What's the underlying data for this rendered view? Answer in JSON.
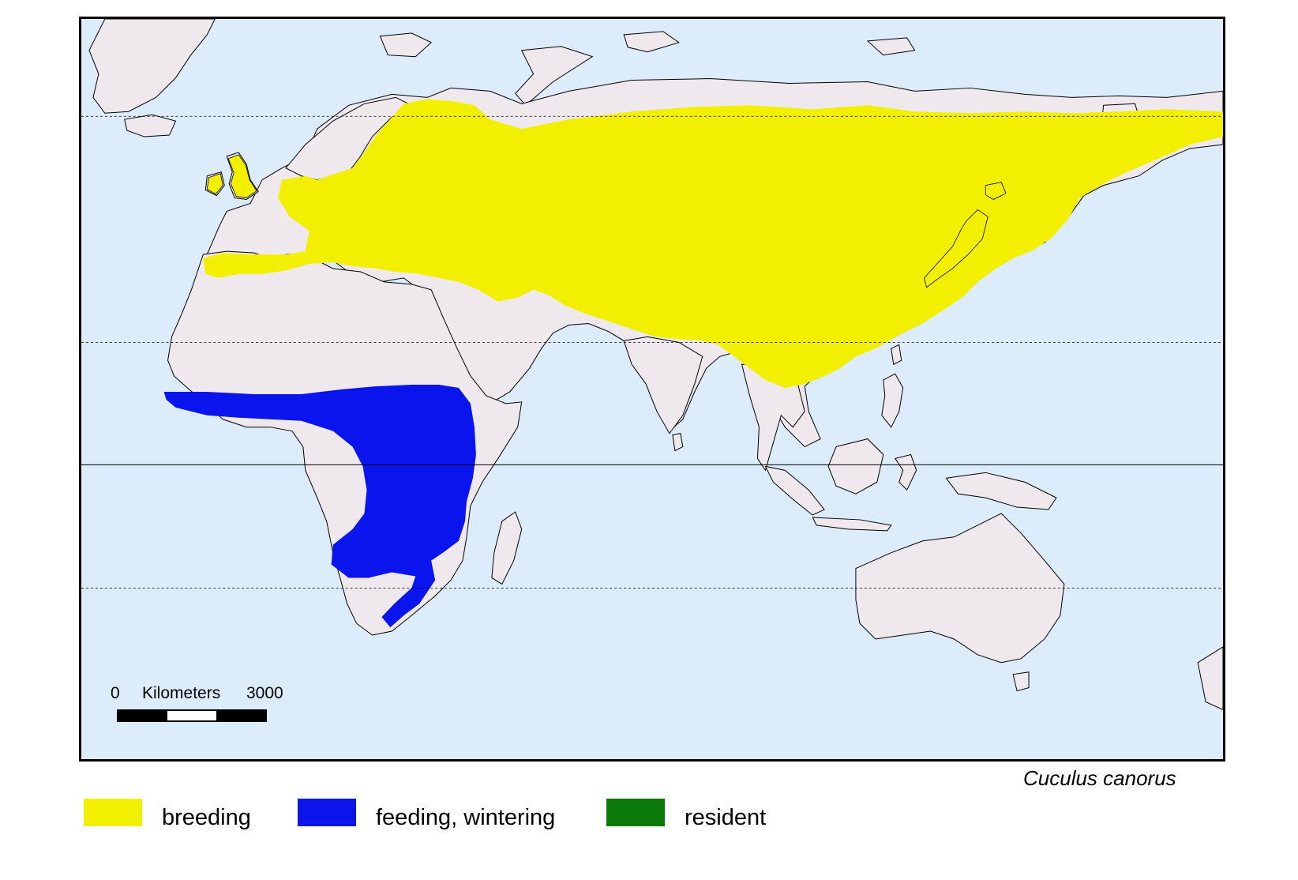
{
  "map": {
    "ocean_color": "#dcecfb",
    "land_color": "#efe9ee",
    "border_color": "#000000"
  },
  "scale": {
    "zero_label": "0",
    "unit_label": "Kilometers",
    "max_label": "3000"
  },
  "species": "Cuculus canorus",
  "legend": [
    {
      "label": "breeding",
      "color": "#f2f000"
    },
    {
      "label": "feeding, wintering",
      "color": "#0a14ec"
    },
    {
      "label": "resident",
      "color": "#0b7a0b"
    }
  ]
}
